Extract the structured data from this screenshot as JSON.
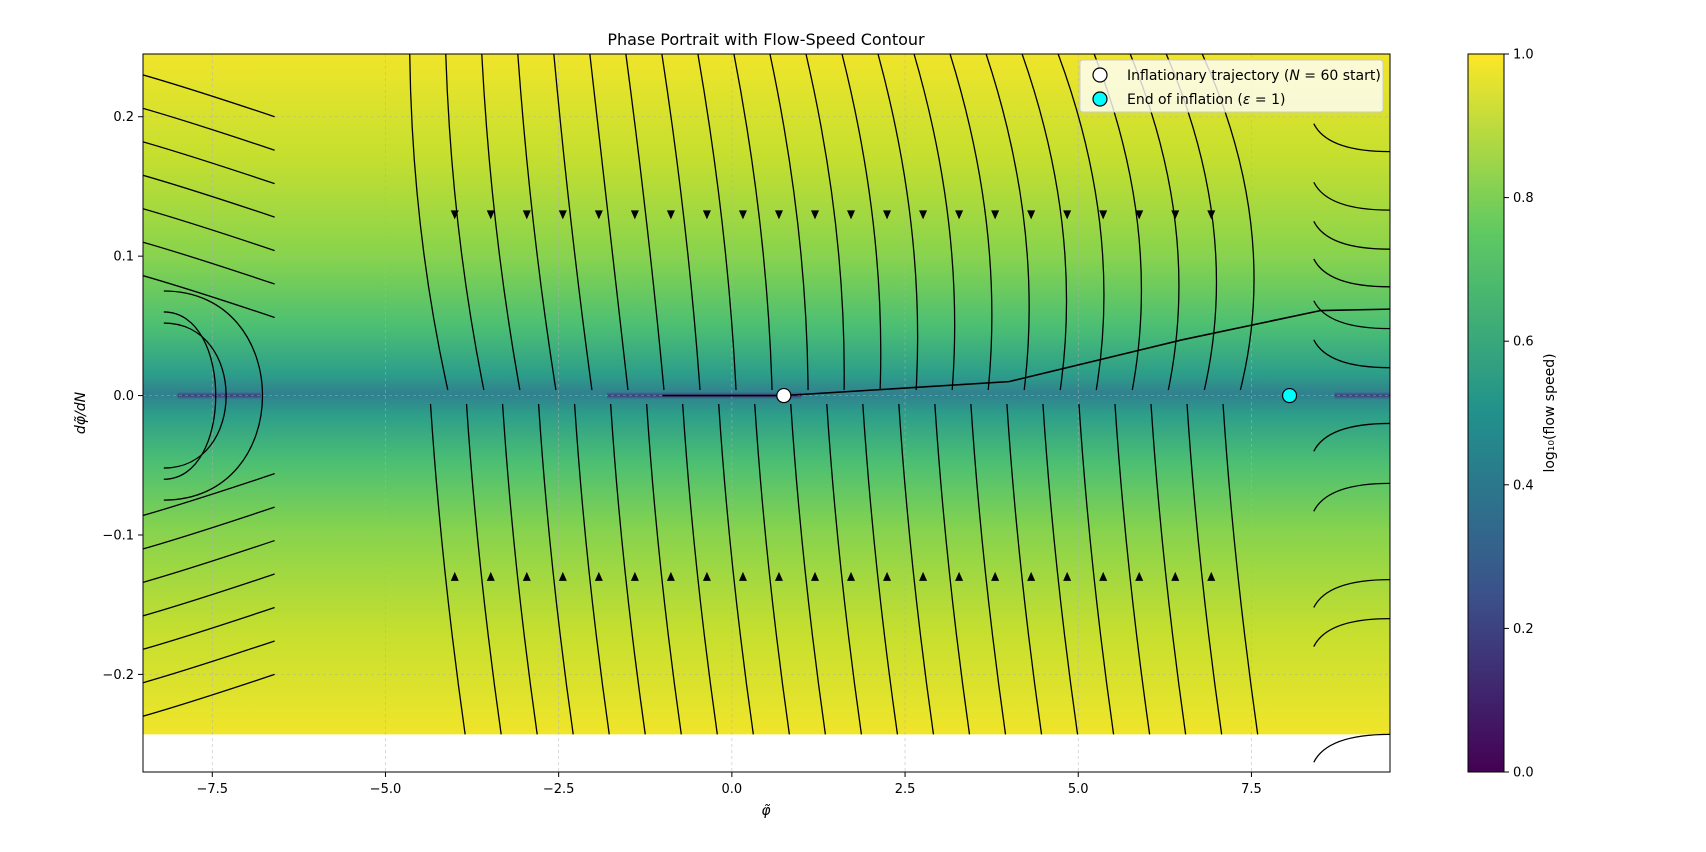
{
  "chart_data": {
    "type": "heatmap",
    "title": "Phase Portrait with Flow-Speed Contour",
    "xlabel": "φ̃",
    "ylabel": "dφ̃/dN",
    "xlim": [
      -8.5,
      9.5
    ],
    "ylim": [
      -0.27,
      0.245
    ],
    "contour_ylim": [
      -0.243,
      0.245
    ],
    "xticks": [
      -7.5,
      -5.0,
      -2.5,
      0.0,
      2.5,
      5.0,
      7.5
    ],
    "xtick_labels": [
      "−7.5",
      "−5.0",
      "−2.5",
      "0.0",
      "2.5",
      "5.0",
      "7.5"
    ],
    "yticks": [
      -0.2,
      -0.1,
      0.0,
      0.1,
      0.2
    ],
    "ytick_labels": [
      "−0.2",
      "−0.1",
      "0.0",
      "0.1",
      "0.2"
    ],
    "grid": true,
    "colorbar": {
      "label": "log₁₀(flow speed)",
      "range": [
        0.0,
        1.0
      ],
      "ticks": [
        "0.0",
        "0.2",
        "0.4",
        "0.6",
        "0.8",
        "1.0"
      ],
      "colormap": [
        "#440154",
        "#3b528b",
        "#21918c",
        "#5ec962",
        "#fde725"
      ]
    },
    "markers": [
      {
        "name": "Inflationary trajectory (N = 60 start)",
        "x": 0.75,
        "y": 0.0,
        "color": "#ffffff"
      },
      {
        "name": "End of inflation (ε = 1)",
        "x": 8.05,
        "y": 0.0,
        "color": "#00ffff"
      }
    ],
    "trajectory": [
      [
        -1.0,
        0.0
      ],
      [
        0.75,
        0.0
      ],
      [
        4.0,
        0.01
      ],
      [
        6.5,
        0.04
      ],
      [
        8.5,
        0.061
      ],
      [
        9.5,
        0.062
      ]
    ],
    "legend_position": "upper right"
  },
  "legend": {
    "items": [
      {
        "pre": "Inflationary trajectory (",
        "math": "N",
        "post": " = 60 start)"
      },
      {
        "pre": "End of inflation (",
        "math": "ε",
        "post": " = 1)"
      }
    ]
  }
}
